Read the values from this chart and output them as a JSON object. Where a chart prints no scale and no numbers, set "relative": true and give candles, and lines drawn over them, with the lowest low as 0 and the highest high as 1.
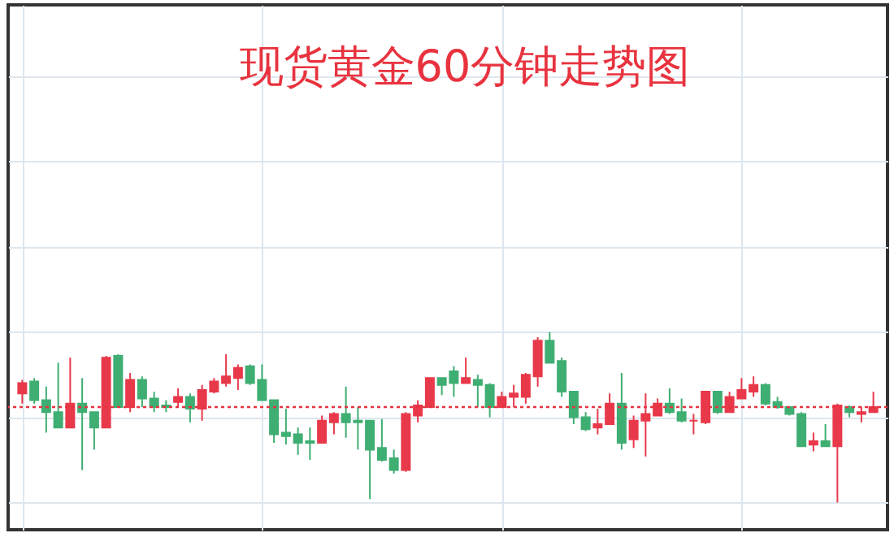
{
  "chart_data": {
    "type": "candlestick",
    "title": "现货黄金60分钟走势图",
    "relative": true,
    "grid": true,
    "categories": [
      null,
      null,
      null,
      null,
      null,
      null,
      null,
      null,
      null,
      null,
      null,
      null,
      null,
      null,
      null,
      null,
      null,
      null,
      null,
      null,
      null,
      null,
      null,
      null,
      null,
      null,
      null,
      null,
      null,
      null,
      null,
      null,
      null,
      null,
      null,
      null,
      null,
      null,
      null,
      null,
      null,
      null,
      null,
      null,
      null,
      null,
      null,
      null,
      null,
      null,
      null,
      null,
      null,
      null,
      null,
      null,
      null,
      null,
      null,
      null,
      null,
      null,
      null,
      null,
      null,
      null,
      null,
      null,
      null,
      null,
      null,
      null
    ],
    "ohlc": [
      [
        0.64,
        0.72,
        0.58,
        0.7
      ],
      [
        0.71,
        0.73,
        0.58,
        0.6
      ],
      [
        0.6,
        0.68,
        0.41,
        0.53
      ],
      [
        0.53,
        0.82,
        0.44,
        0.44
      ],
      [
        0.44,
        0.85,
        0.44,
        0.58
      ],
      [
        0.58,
        0.73,
        0.19,
        0.53
      ],
      [
        0.53,
        0.53,
        0.31,
        0.44
      ],
      [
        0.44,
        0.86,
        0.44,
        0.85
      ],
      [
        0.86,
        0.87,
        0.56,
        0.56
      ],
      [
        0.56,
        0.76,
        0.53,
        0.72
      ],
      [
        0.72,
        0.74,
        0.56,
        0.61
      ],
      [
        0.61,
        0.65,
        0.53,
        0.56
      ],
      [
        0.57,
        0.6,
        0.53,
        0.56
      ],
      [
        0.59,
        0.67,
        0.56,
        0.62
      ],
      [
        0.62,
        0.64,
        0.47,
        0.55
      ],
      [
        0.55,
        0.69,
        0.48,
        0.66
      ],
      [
        0.65,
        0.73,
        0.64,
        0.71
      ],
      [
        0.7,
        0.87,
        0.68,
        0.74
      ],
      [
        0.73,
        0.81,
        0.66,
        0.79
      ],
      [
        0.8,
        0.81,
        0.69,
        0.7
      ],
      [
        0.72,
        0.81,
        0.6,
        0.6
      ],
      [
        0.6,
        0.6,
        0.35,
        0.4
      ],
      [
        0.41,
        0.55,
        0.34,
        0.39
      ],
      [
        0.4,
        0.44,
        0.28,
        0.35
      ],
      [
        0.36,
        0.44,
        0.25,
        0.35
      ],
      [
        0.35,
        0.51,
        0.35,
        0.48
      ],
      [
        0.47,
        0.53,
        0.4,
        0.52
      ],
      [
        0.52,
        0.68,
        0.38,
        0.47
      ],
      [
        0.48,
        0.56,
        0.31,
        0.47
      ],
      [
        0.48,
        0.48,
        0.02,
        0.31
      ],
      [
        0.32,
        0.49,
        0.24,
        0.25
      ],
      [
        0.26,
        0.31,
        0.17,
        0.19
      ],
      [
        0.19,
        0.53,
        0.18,
        0.52
      ],
      [
        0.51,
        0.6,
        0.47,
        0.57
      ],
      [
        0.56,
        0.73,
        0.56,
        0.73
      ],
      [
        0.73,
        0.73,
        0.63,
        0.69
      ],
      [
        0.77,
        0.8,
        0.62,
        0.7
      ],
      [
        0.7,
        0.85,
        0.7,
        0.73
      ],
      [
        0.72,
        0.75,
        0.56,
        0.69
      ],
      [
        0.69,
        0.7,
        0.5,
        0.56
      ],
      [
        0.56,
        0.65,
        0.56,
        0.62
      ],
      [
        0.62,
        0.69,
        0.56,
        0.64
      ],
      [
        0.62,
        0.76,
        0.58,
        0.75
      ],
      [
        0.74,
        0.97,
        0.68,
        0.95
      ],
      [
        0.95,
        1,
        0.82,
        0.82
      ],
      [
        0.83,
        0.85,
        0.62,
        0.65
      ],
      [
        0.65,
        0.65,
        0.46,
        0.5
      ],
      [
        0.5,
        0.53,
        0.42,
        0.43
      ],
      [
        0.44,
        0.55,
        0.4,
        0.46
      ],
      [
        0.46,
        0.64,
        0.46,
        0.58
      ],
      [
        0.58,
        0.76,
        0.31,
        0.35
      ],
      [
        0.37,
        0.51,
        0.32,
        0.48
      ],
      [
        0.48,
        0.64,
        0.27,
        0.52
      ],
      [
        0.51,
        0.61,
        0.51,
        0.58
      ],
      [
        0.58,
        0.67,
        0.52,
        0.53
      ],
      [
        0.53,
        0.61,
        0.47,
        0.48
      ],
      [
        0.48,
        0.52,
        0.4,
        0.48
      ],
      [
        0.47,
        0.65,
        0.46,
        0.65
      ],
      [
        0.65,
        0.65,
        0.52,
        0.53
      ],
      [
        0.53,
        0.65,
        0.53,
        0.62
      ],
      [
        0.61,
        0.73,
        0.61,
        0.66
      ],
      [
        0.65,
        0.74,
        0.62,
        0.69
      ],
      [
        0.69,
        0.7,
        0.57,
        0.58
      ],
      [
        0.59,
        0.62,
        0.55,
        0.56
      ],
      [
        0.56,
        0.56,
        0.51,
        0.52
      ],
      [
        0.52,
        0.53,
        0.33,
        0.33
      ],
      [
        0.34,
        0.41,
        0.3,
        0.36
      ],
      [
        0.36,
        0.46,
        0.33,
        0.33
      ],
      [
        0.33,
        0.58,
        0,
        0.57
      ],
      [
        0.56,
        0.57,
        0.5,
        0.53
      ],
      [
        0.52,
        0.56,
        0.47,
        0.53
      ],
      [
        0.53,
        0.65,
        0.53,
        0.56
      ]
    ],
    "colors": [
      "#e8394a",
      "#3fae72",
      "#3fae72",
      "#3fae72",
      "#e8394a",
      "#3fae72",
      "#3fae72",
      "#e8394a",
      "#3fae72",
      "#e8394a",
      "#3fae72",
      "#3fae72",
      "#3fae72",
      "#e8394a",
      "#3fae72",
      "#e8394a",
      "#e8394a",
      "#e8394a",
      "#e8394a",
      "#3fae72",
      "#3fae72",
      "#3fae72",
      "#3fae72",
      "#3fae72",
      "#3fae72",
      "#e8394a",
      "#e8394a",
      "#3fae72",
      "#3fae72",
      "#3fae72",
      "#3fae72",
      "#3fae72",
      "#e8394a",
      "#e8394a",
      "#e8394a",
      "#3fae72",
      "#3fae72",
      "#e8394a",
      "#3fae72",
      "#3fae72",
      "#e8394a",
      "#e8394a",
      "#e8394a",
      "#e8394a",
      "#3fae72",
      "#3fae72",
      "#3fae72",
      "#3fae72",
      "#e8394a",
      "#e8394a",
      "#3fae72",
      "#e8394a",
      "#e8394a",
      "#e8394a",
      "#3fae72",
      "#3fae72",
      "#e8394a",
      "#e8394a",
      "#3fae72",
      "#e8394a",
      "#e8394a",
      "#e8394a",
      "#3fae72",
      "#3fae72",
      "#3fae72",
      "#3fae72",
      "#e8394a",
      "#3fae72",
      "#e8394a",
      "#3fae72",
      "#e8394a",
      "#e8394a"
    ],
    "ref_lines": [
      {
        "axis": "y",
        "value": 0.56,
        "color": "#e8333f",
        "line_style": "dotted"
      }
    ]
  }
}
